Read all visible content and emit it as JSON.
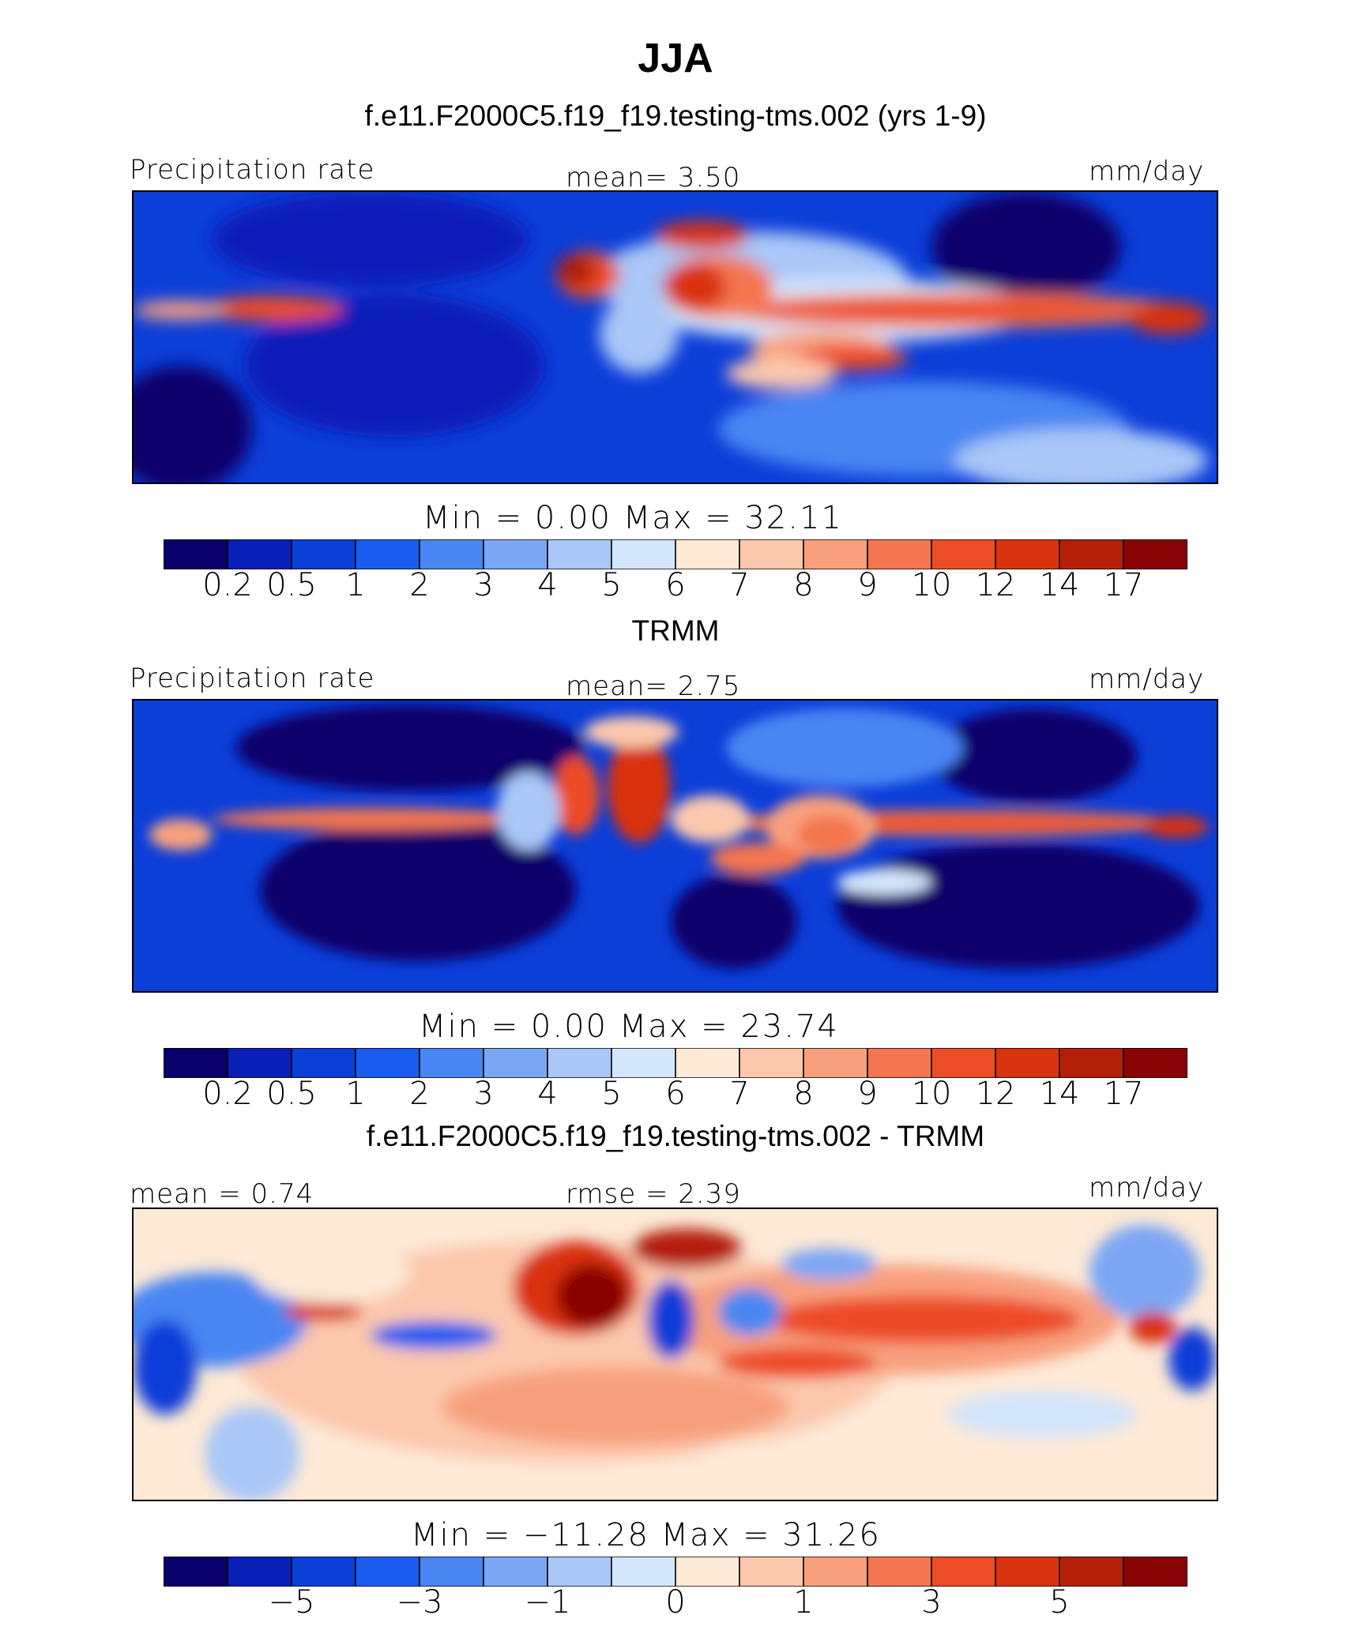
{
  "header": {
    "season": "JJA",
    "case_title": "f.e11.F2000C5.f19_f19.testing-tms.002 (yrs 1-9)"
  },
  "panels": [
    {
      "id": "model",
      "left_label": "Precipitation rate",
      "center_label": "mean=    3.50",
      "right_label": "mm/day",
      "minmax": "Min  =      0.00  Max  =    32.11"
    },
    {
      "id": "obs",
      "title": "TRMM",
      "left_label": "Precipitation rate",
      "center_label": "mean=    2.75",
      "right_label": "mm/day",
      "minmax": "Min  =      0.00  Max  =    23.74"
    },
    {
      "id": "diff",
      "title": "f.e11.F2000C5.f19_f19.testing-tms.002 - TRMM",
      "left_label": "mean  =    0.74",
      "center_label": "rmse  =    2.39",
      "right_label": "mm/day",
      "minmax": "Min  =  −11.28  Max  =    31.26"
    }
  ],
  "colorbar_colors": [
    "#08006b",
    "#0a1fb8",
    "#0c3ed8",
    "#1b5cf0",
    "#4a86f2",
    "#7ba6f4",
    "#a9c7f7",
    "#d4e6fb",
    "#fde9d6",
    "#fbc8ad",
    "#f8a07e",
    "#f37650",
    "#ec4c26",
    "#d9330f",
    "#b41f0a",
    "#890406"
  ],
  "colorbar_precip_ticks": [
    "0.2",
    "0.5",
    "1",
    "2",
    "3",
    "4",
    "5",
    "6",
    "7",
    "8",
    "9",
    "10",
    "12",
    "14",
    "17"
  ],
  "colorbar_diff_ticks": [
    {
      "label": "−5",
      "index": 2
    },
    {
      "label": "−3",
      "index": 4
    },
    {
      "label": "−1",
      "index": 6
    },
    {
      "label": "0",
      "index": 8
    },
    {
      "label": "1",
      "index": 10
    },
    {
      "label": "3",
      "index": 12
    },
    {
      "label": "5",
      "index": 14
    }
  ],
  "chart_data": [
    {
      "type": "heatmap",
      "title": "Precipitation rate (model, JJA)",
      "units": "mm/day",
      "mean": 3.5,
      "min": 0.0,
      "max": 32.11,
      "contour_levels": [
        0.2,
        0.5,
        1,
        2,
        3,
        4,
        5,
        6,
        7,
        8,
        9,
        10,
        12,
        14,
        17
      ]
    },
    {
      "type": "heatmap",
      "title": "Precipitation rate (TRMM, JJA)",
      "units": "mm/day",
      "mean": 2.75,
      "min": 0.0,
      "max": 23.74,
      "contour_levels": [
        0.2,
        0.5,
        1,
        2,
        3,
        4,
        5,
        6,
        7,
        8,
        9,
        10,
        12,
        14,
        17
      ]
    },
    {
      "type": "heatmap",
      "title": "f.e11.F2000C5.f19_f19.testing-tms.002 - TRMM",
      "units": "mm/day",
      "mean": 0.74,
      "rmse": 2.39,
      "min": -11.28,
      "max": 31.26,
      "contour_tick_labels": [
        -5,
        -3,
        -1,
        0,
        1,
        3,
        5
      ]
    }
  ]
}
